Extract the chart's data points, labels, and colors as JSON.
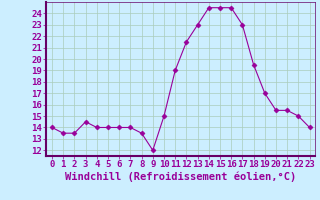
{
  "x": [
    0,
    1,
    2,
    3,
    4,
    5,
    6,
    7,
    8,
    9,
    10,
    11,
    12,
    13,
    14,
    15,
    16,
    17,
    18,
    19,
    20,
    21,
    22,
    23
  ],
  "y": [
    14,
    13.5,
    13.5,
    14.5,
    14,
    14,
    14,
    14,
    13.5,
    12,
    15,
    19,
    21.5,
    23,
    24.5,
    24.5,
    24.5,
    23,
    19.5,
    17,
    15.5,
    15.5,
    15,
    14
  ],
  "line_color": "#990099",
  "marker": "D",
  "marker_size": 2.5,
  "bg_color": "#cceeff",
  "grid_color": "#aaccbb",
  "xlabel": "Windchill (Refroidissement éolien,°C)",
  "xlabel_color": "#990099",
  "tick_color": "#990099",
  "spine_color": "#660066",
  "ylim": [
    11.5,
    25
  ],
  "xlim": [
    -0.5,
    23.5
  ],
  "yticks": [
    12,
    13,
    14,
    15,
    16,
    17,
    18,
    19,
    20,
    21,
    22,
    23,
    24
  ],
  "xticks": [
    0,
    1,
    2,
    3,
    4,
    5,
    6,
    7,
    8,
    9,
    10,
    11,
    12,
    13,
    14,
    15,
    16,
    17,
    18,
    19,
    20,
    21,
    22,
    23
  ],
  "font_size": 6.5,
  "xlabel_fontsize": 7.5
}
